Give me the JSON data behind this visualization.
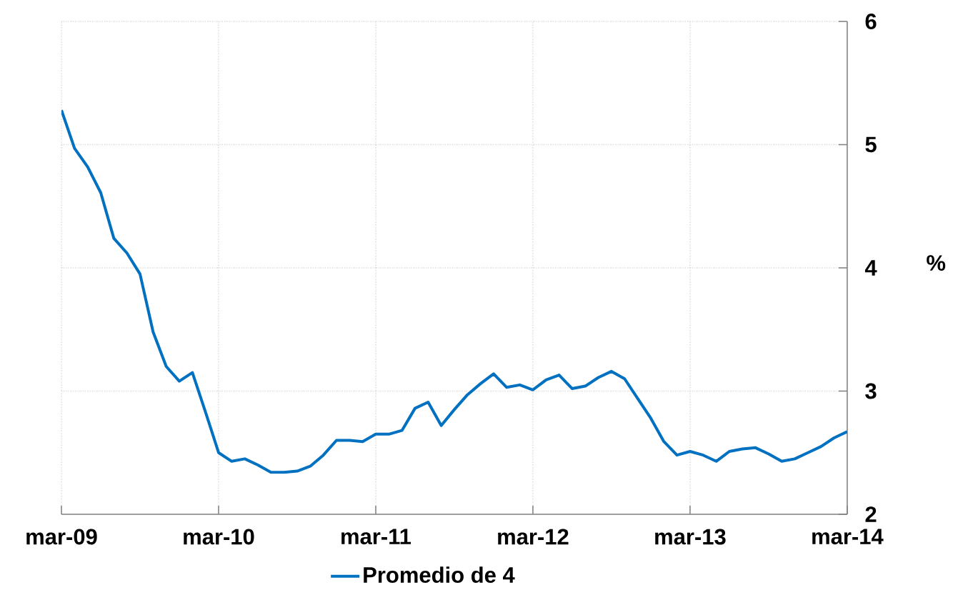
{
  "chart_data": {
    "type": "line",
    "categories": [
      "mar-09",
      null,
      null,
      null,
      null,
      null,
      null,
      null,
      null,
      null,
      null,
      null,
      "mar-10",
      null,
      null,
      null,
      null,
      null,
      null,
      null,
      null,
      null,
      null,
      null,
      "mar-11",
      null,
      null,
      null,
      null,
      null,
      null,
      null,
      null,
      null,
      null,
      null,
      "mar-12",
      null,
      null,
      null,
      null,
      null,
      null,
      null,
      null,
      null,
      null,
      null,
      "mar-13",
      null,
      null,
      null,
      null,
      null,
      null,
      null,
      null,
      null,
      null,
      null,
      "mar-14"
    ],
    "series": [
      {
        "name": "Promedio de 4",
        "color": "#0070c0",
        "values": [
          5.28,
          4.97,
          4.82,
          4.61,
          4.24,
          4.12,
          3.95,
          3.48,
          3.2,
          3.08,
          3.15,
          2.83,
          2.5,
          2.43,
          2.45,
          2.4,
          2.34,
          2.34,
          2.35,
          2.39,
          2.48,
          2.6,
          2.6,
          2.59,
          2.65,
          2.65,
          2.68,
          2.86,
          2.91,
          2.72,
          2.85,
          2.97,
          3.06,
          3.14,
          3.03,
          3.05,
          3.01,
          3.09,
          3.13,
          3.02,
          3.04,
          3.11,
          3.16,
          3.1,
          2.94,
          2.78,
          2.59,
          2.48,
          2.51,
          2.48,
          2.43,
          2.51,
          2.53,
          2.54,
          2.49,
          2.43,
          2.45,
          2.5,
          2.55,
          2.62,
          2.67
        ]
      }
    ],
    "ylabel": "%",
    "ylim": [
      2,
      6
    ],
    "yticks": [
      2,
      3,
      4,
      5,
      6
    ],
    "grid": true,
    "legend": "bottom"
  }
}
